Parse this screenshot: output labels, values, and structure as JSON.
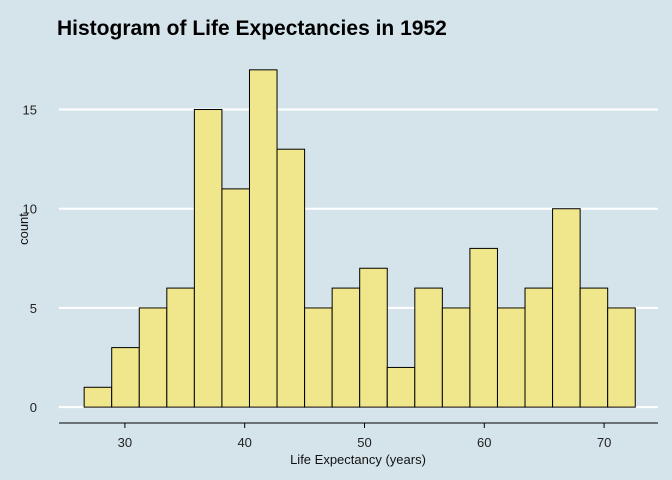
{
  "chart_data": {
    "type": "bar",
    "title": "Histogram of Life Expectancies in 1952",
    "xlabel": "Life Expectancy (years)",
    "ylabel": "count",
    "xlim": [
      24.5,
      74.5
    ],
    "ylim": [
      -0.8,
      18.0
    ],
    "x_ticks": [
      30,
      40,
      50,
      60,
      70
    ],
    "y_ticks": [
      0,
      5,
      10,
      15
    ],
    "bin_width": 2.3,
    "bins": [
      {
        "x0": 26.6,
        "x1": 28.9,
        "count": 1
      },
      {
        "x0": 28.9,
        "x1": 31.2,
        "count": 3
      },
      {
        "x0": 31.2,
        "x1": 33.5,
        "count": 5
      },
      {
        "x0": 33.5,
        "x1": 35.8,
        "count": 6
      },
      {
        "x0": 35.8,
        "x1": 38.1,
        "count": 15
      },
      {
        "x0": 38.1,
        "x1": 40.4,
        "count": 11
      },
      {
        "x0": 40.4,
        "x1": 42.7,
        "count": 17
      },
      {
        "x0": 42.7,
        "x1": 45.0,
        "count": 13
      },
      {
        "x0": 45.0,
        "x1": 47.3,
        "count": 5
      },
      {
        "x0": 47.3,
        "x1": 49.6,
        "count": 6
      },
      {
        "x0": 49.6,
        "x1": 51.9,
        "count": 7
      },
      {
        "x0": 51.9,
        "x1": 54.2,
        "count": 2
      },
      {
        "x0": 54.2,
        "x1": 56.5,
        "count": 6
      },
      {
        "x0": 56.5,
        "x1": 58.8,
        "count": 5
      },
      {
        "x0": 58.8,
        "x1": 61.1,
        "count": 8
      },
      {
        "x0": 61.1,
        "x1": 63.4,
        "count": 5
      },
      {
        "x0": 63.4,
        "x1": 65.7,
        "count": 6
      },
      {
        "x0": 65.7,
        "x1": 68.0,
        "count": 10
      },
      {
        "x0": 68.0,
        "x1": 70.3,
        "count": 6
      },
      {
        "x0": 70.3,
        "x1": 72.6,
        "count": 5
      }
    ],
    "grid": "horizontal",
    "colors": {
      "background": "#d5e4eb",
      "bar_fill": "#f0e68c",
      "bar_stroke": "#000000",
      "grid": "#ffffff"
    }
  }
}
